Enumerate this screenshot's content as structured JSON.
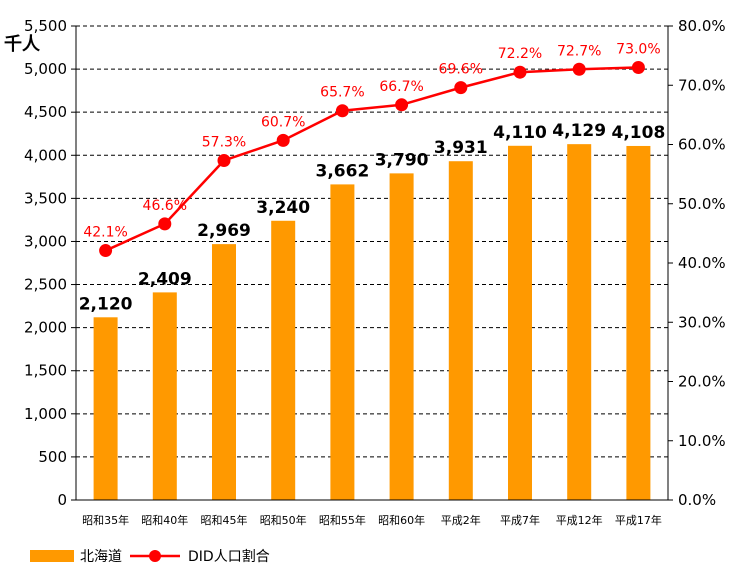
{
  "chart_data": {
    "type": "bar",
    "categories": [
      "昭和35年",
      "昭和40年",
      "昭和45年",
      "昭和50年",
      "昭和55年",
      "昭和60年",
      "平成2年",
      "平成7年",
      "平成12年",
      "平成17年"
    ],
    "series": [
      {
        "name": "北海道",
        "type": "bar",
        "axis": "left",
        "values": [
          2120,
          2409,
          2969,
          3240,
          3662,
          3790,
          3931,
          4110,
          4129,
          4108
        ],
        "labels": [
          "2,120",
          "2,409",
          "2,969",
          "3,240",
          "3,662",
          "3,790",
          "3,931",
          "4,110",
          "4,129",
          "4,108"
        ],
        "color": "#ff9900"
      },
      {
        "name": "DID人口割合",
        "type": "line",
        "axis": "right",
        "values": [
          42.1,
          46.6,
          57.3,
          60.7,
          65.7,
          66.7,
          69.6,
          72.2,
          72.7,
          73.0
        ],
        "labels": [
          "42.1%",
          "46.6%",
          "57.3%",
          "60.7%",
          "65.7%",
          "66.7%",
          "69.6%",
          "72.2%",
          "72.7%",
          "73.0%"
        ],
        "color": "#ff0000"
      }
    ],
    "y_left": {
      "unit": "千人",
      "range": [
        0,
        5500
      ],
      "ticks": [
        0,
        500,
        1000,
        1500,
        2000,
        2500,
        3000,
        3500,
        4000,
        4500,
        5000,
        5500
      ],
      "tick_labels": [
        "0",
        "500",
        "1,000",
        "1,500",
        "2,000",
        "2,500",
        "3,000",
        "3,500",
        "4,000",
        "4,500",
        "5,000",
        "5,500"
      ]
    },
    "y_right": {
      "range": [
        0,
        80
      ],
      "ticks": [
        0,
        10,
        20,
        30,
        40,
        50,
        60,
        70,
        80
      ],
      "tick_labels": [
        "0.0%",
        "10.0%",
        "20.0%",
        "30.0%",
        "40.0%",
        "50.0%",
        "60.0%",
        "70.0%",
        "80.0%"
      ]
    },
    "grid": "horizontal dashed",
    "legend": {
      "position": "bottom-left",
      "entries": [
        "北海道",
        "DID人口割合"
      ]
    }
  }
}
